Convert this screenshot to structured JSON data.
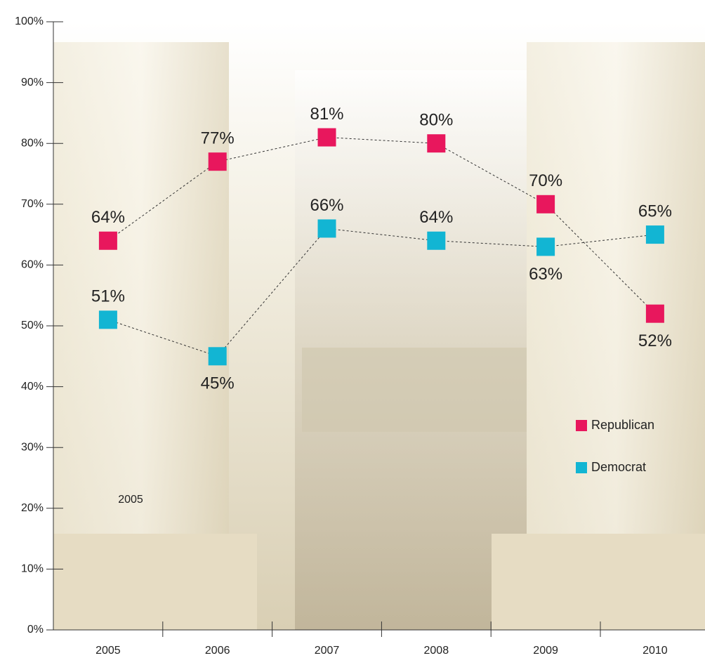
{
  "chart_data": {
    "type": "line",
    "categories": [
      "2005",
      "2006",
      "2007",
      "2008",
      "2009",
      "2010"
    ],
    "series": [
      {
        "name": "Republican",
        "color": "#e8175d",
        "values": [
          64,
          77,
          81,
          80,
          70,
          52
        ],
        "value_labels": [
          "64%",
          "77%",
          "81%",
          "80%",
          "70%",
          "52%"
        ]
      },
      {
        "name": "Democrat",
        "color": "#12b5d3",
        "values": [
          51,
          45,
          66,
          64,
          63,
          65
        ],
        "value_labels": [
          "51%",
          "45%",
          "66%",
          "64%",
          "63%",
          "65%"
        ]
      }
    ],
    "ylim": [
      0,
      100
    ],
    "yticks": [
      {
        "value": 0,
        "label": "0%"
      },
      {
        "value": 10,
        "label": "10%"
      },
      {
        "value": 20,
        "label": "20%"
      },
      {
        "value": 30,
        "label": "30%"
      },
      {
        "value": 40,
        "label": "40%"
      },
      {
        "value": 50,
        "label": "50%"
      },
      {
        "value": 60,
        "label": "60%"
      },
      {
        "value": 70,
        "label": "70%"
      },
      {
        "value": 80,
        "label": "80%"
      },
      {
        "value": 90,
        "label": "90%"
      },
      {
        "value": 100,
        "label": "100%"
      }
    ],
    "annotation": "2005",
    "legend": "lower right"
  }
}
